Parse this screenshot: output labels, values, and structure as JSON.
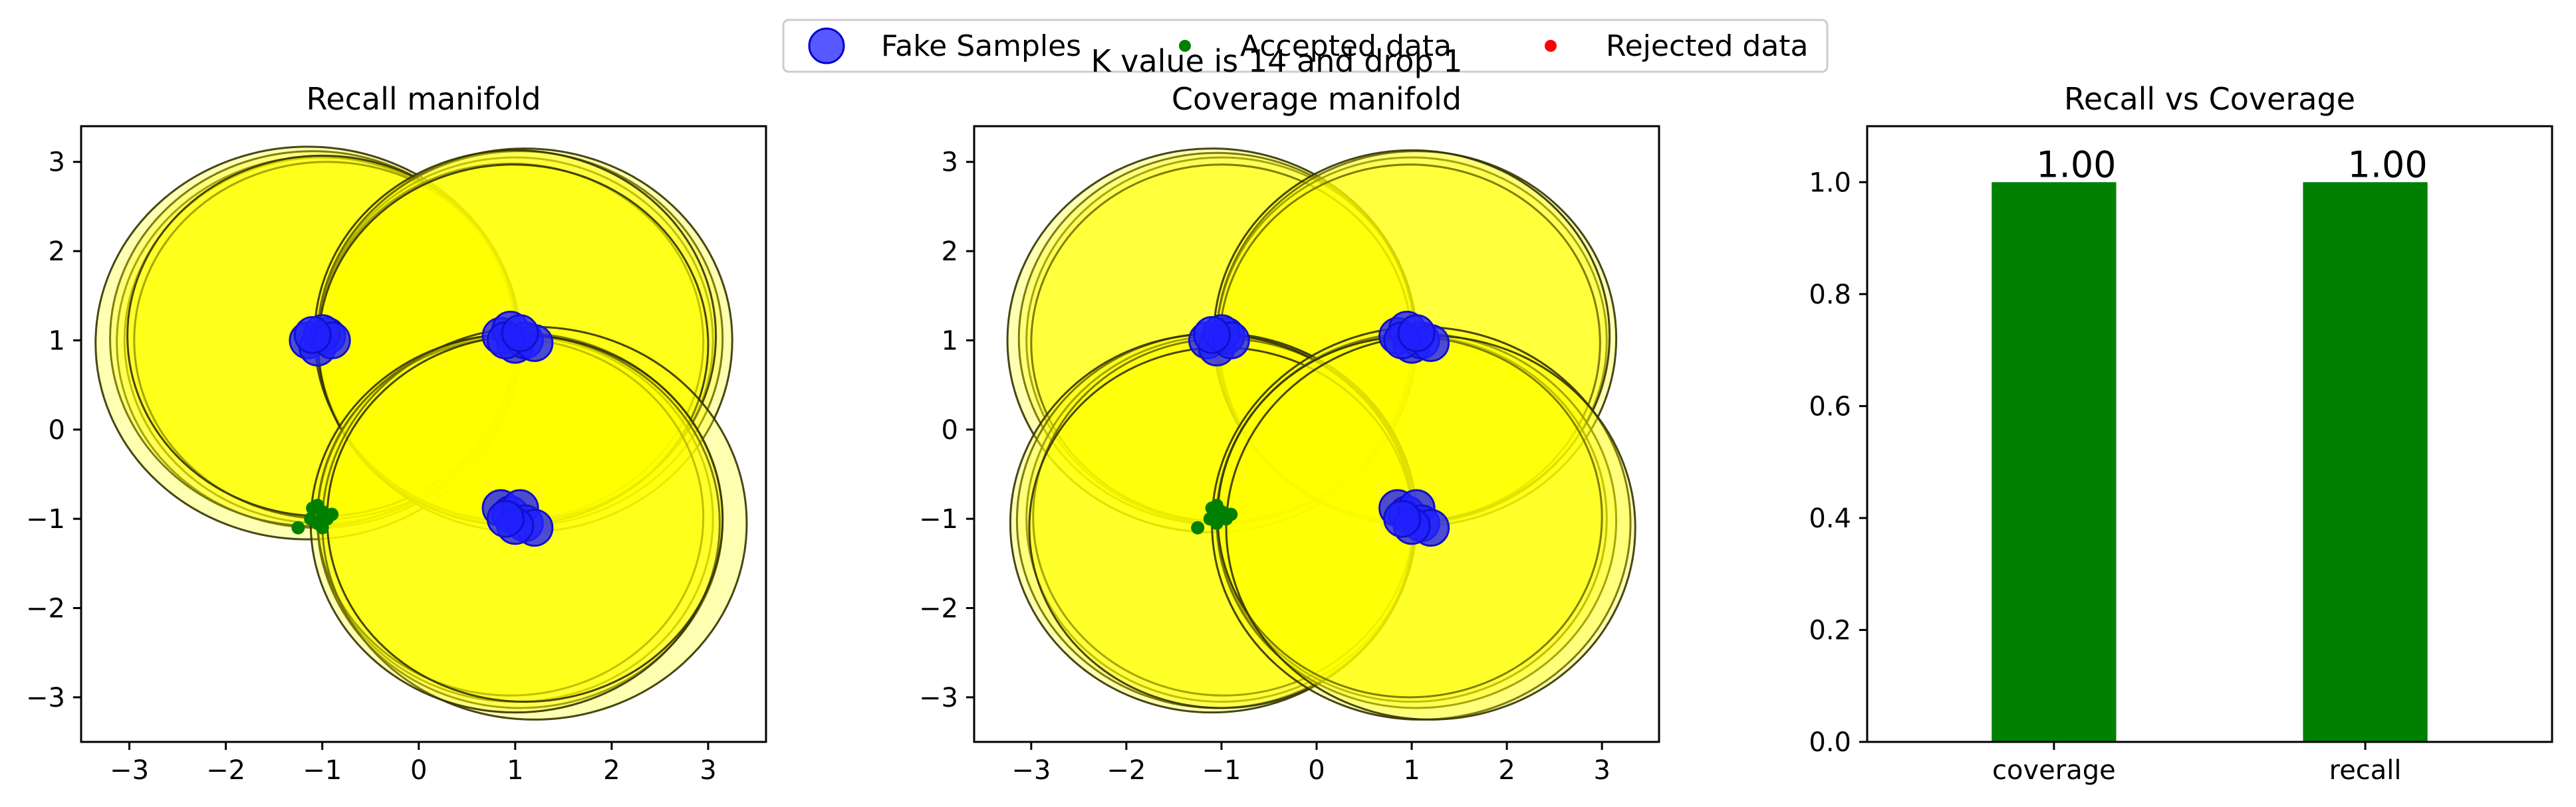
{
  "figure": {
    "suptitle": "K value is 14 and drop 1",
    "legend": {
      "placement": "top-center",
      "entries": [
        {
          "label": "Fake Samples",
          "color": "#2020ff",
          "marker": "large-circle"
        },
        {
          "label": "Accepted data",
          "color": "#008000",
          "marker": "small-dot"
        },
        {
          "label": "Rejected data",
          "color": "#ff0000",
          "marker": "small-dot"
        }
      ]
    }
  },
  "colors": {
    "manifold_fill": "#ffff00",
    "manifold_edge": "#333300",
    "fake": "#2020ff",
    "accepted": "#008000",
    "bar": "#008000"
  },
  "chart_data": [
    {
      "type": "scatter",
      "title": "Recall manifold",
      "xlim": [
        -3.5,
        3.6
      ],
      "ylim": [
        -3.5,
        3.4
      ],
      "xticks": [
        -3,
        -2,
        -1,
        0,
        1,
        2,
        3
      ],
      "yticks": [
        -3,
        -2,
        -1,
        0,
        1,
        2,
        3
      ],
      "manifold_circles": [
        {
          "cx": -1.0,
          "cy": 1.0,
          "r": 2.05
        },
        {
          "cx": -1.05,
          "cy": 0.98,
          "r": 2.08
        },
        {
          "cx": -1.1,
          "cy": 1.02,
          "r": 2.1
        },
        {
          "cx": -0.95,
          "cy": 1.0,
          "r": 2.0
        },
        {
          "cx": -1.15,
          "cy": 0.97,
          "r": 2.2
        },
        {
          "cx": -1.0,
          "cy": 1.05,
          "r": 2.02
        },
        {
          "cx": 1.0,
          "cy": 1.0,
          "r": 2.05
        },
        {
          "cx": 1.05,
          "cy": 1.02,
          "r": 2.1
        },
        {
          "cx": 0.95,
          "cy": 0.98,
          "r": 2.0
        },
        {
          "cx": 1.1,
          "cy": 1.0,
          "r": 2.15
        },
        {
          "cx": 1.0,
          "cy": 1.05,
          "r": 2.08
        },
        {
          "cx": 0.98,
          "cy": 0.95,
          "r": 2.02
        },
        {
          "cx": 1.0,
          "cy": -1.0,
          "r": 2.05
        },
        {
          "cx": 1.05,
          "cy": -1.02,
          "r": 2.1
        },
        {
          "cx": 0.95,
          "cy": -0.98,
          "r": 2.0
        },
        {
          "cx": 1.2,
          "cy": -1.05,
          "r": 2.2
        },
        {
          "cx": 1.0,
          "cy": -1.05,
          "r": 2.12
        },
        {
          "cx": 1.1,
          "cy": -1.0,
          "r": 2.05
        }
      ],
      "fake_samples": [
        {
          "x": -1.15,
          "y": 1.0
        },
        {
          "x": -1.05,
          "y": 0.92
        },
        {
          "x": -0.95,
          "y": 1.05
        },
        {
          "x": -1.0,
          "y": 1.08
        },
        {
          "x": -0.9,
          "y": 1.0
        },
        {
          "x": -1.1,
          "y": 1.06
        },
        {
          "x": 0.85,
          "y": 1.05
        },
        {
          "x": 0.95,
          "y": 1.12
        },
        {
          "x": 1.0,
          "y": 0.95
        },
        {
          "x": 1.1,
          "y": 1.0
        },
        {
          "x": 1.2,
          "y": 0.97
        },
        {
          "x": 0.9,
          "y": 1.0
        },
        {
          "x": 1.05,
          "y": 1.08
        },
        {
          "x": 0.85,
          "y": -0.88
        },
        {
          "x": 0.95,
          "y": -0.95
        },
        {
          "x": 1.05,
          "y": -0.88
        },
        {
          "x": 1.1,
          "y": -1.05
        },
        {
          "x": 1.2,
          "y": -1.1
        },
        {
          "x": 1.0,
          "y": -1.08
        },
        {
          "x": 0.9,
          "y": -1.0
        }
      ],
      "accepted_data": [
        {
          "x": -1.1,
          "y": -0.88
        },
        {
          "x": -1.0,
          "y": -0.92
        },
        {
          "x": -0.95,
          "y": -1.0
        },
        {
          "x": -1.05,
          "y": -1.05
        },
        {
          "x": -1.12,
          "y": -1.0
        },
        {
          "x": -1.0,
          "y": -1.1
        },
        {
          "x": -0.9,
          "y": -0.95
        },
        {
          "x": -1.25,
          "y": -1.1
        },
        {
          "x": -1.05,
          "y": -0.85
        }
      ],
      "rejected_data": []
    },
    {
      "type": "scatter",
      "title": "Coverage manifold",
      "xlim": [
        -3.6,
        3.6
      ],
      "ylim": [
        -3.5,
        3.4
      ],
      "xticks": [
        -3,
        -2,
        -1,
        0,
        1,
        2,
        3
      ],
      "yticks": [
        -3,
        -2,
        -1,
        0,
        1,
        2,
        3
      ],
      "manifold_circles": [
        {
          "cx": -1.0,
          "cy": 1.0,
          "r": 2.05
        },
        {
          "cx": -1.05,
          "cy": 1.02,
          "r": 2.08
        },
        {
          "cx": -1.0,
          "cy": 0.97,
          "r": 2.0
        },
        {
          "cx": -1.1,
          "cy": 1.0,
          "r": 2.15
        },
        {
          "cx": 1.0,
          "cy": 1.0,
          "r": 2.05
        },
        {
          "cx": 1.05,
          "cy": 1.02,
          "r": 2.1
        },
        {
          "cx": 0.98,
          "cy": 0.97,
          "r": 2.0
        },
        {
          "cx": 1.0,
          "cy": 1.05,
          "r": 2.08
        },
        {
          "cx": -1.0,
          "cy": -1.0,
          "r": 2.05
        },
        {
          "cx": -1.05,
          "cy": -1.02,
          "r": 2.1
        },
        {
          "cx": -0.98,
          "cy": -0.98,
          "r": 2.0
        },
        {
          "cx": -1.1,
          "cy": -1.05,
          "r": 2.12
        },
        {
          "cx": -1.0,
          "cy": -1.1,
          "r": 2.02
        },
        {
          "cx": 1.0,
          "cy": -1.0,
          "r": 2.05
        },
        {
          "cx": 1.05,
          "cy": -1.02,
          "r": 2.1
        },
        {
          "cx": 1.1,
          "cy": -1.05,
          "r": 2.2
        },
        {
          "cx": 0.98,
          "cy": -0.98,
          "r": 2.02
        },
        {
          "cx": 1.2,
          "cy": -1.1,
          "r": 2.15
        }
      ],
      "fake_samples": [
        {
          "x": -1.15,
          "y": 1.0
        },
        {
          "x": -1.05,
          "y": 0.92
        },
        {
          "x": -0.95,
          "y": 1.05
        },
        {
          "x": -1.0,
          "y": 1.08
        },
        {
          "x": -0.9,
          "y": 1.0
        },
        {
          "x": -1.1,
          "y": 1.06
        },
        {
          "x": 0.85,
          "y": 1.05
        },
        {
          "x": 0.95,
          "y": 1.12
        },
        {
          "x": 1.0,
          "y": 0.95
        },
        {
          "x": 1.1,
          "y": 1.0
        },
        {
          "x": 1.2,
          "y": 0.97
        },
        {
          "x": 0.9,
          "y": 1.0
        },
        {
          "x": 1.05,
          "y": 1.08
        },
        {
          "x": 0.85,
          "y": -0.88
        },
        {
          "x": 0.95,
          "y": -0.95
        },
        {
          "x": 1.05,
          "y": -0.88
        },
        {
          "x": 1.1,
          "y": -1.05
        },
        {
          "x": 1.2,
          "y": -1.1
        },
        {
          "x": 1.0,
          "y": -1.08
        },
        {
          "x": 0.9,
          "y": -1.0
        }
      ],
      "accepted_data": [
        {
          "x": -1.1,
          "y": -0.88
        },
        {
          "x": -1.0,
          "y": -0.92
        },
        {
          "x": -0.95,
          "y": -1.0
        },
        {
          "x": -1.05,
          "y": -1.05
        },
        {
          "x": -1.12,
          "y": -1.0
        },
        {
          "x": -1.0,
          "y": -0.95
        },
        {
          "x": -0.9,
          "y": -0.95
        },
        {
          "x": -1.25,
          "y": -1.1
        },
        {
          "x": -1.05,
          "y": -0.85
        }
      ],
      "rejected_data": []
    },
    {
      "type": "bar",
      "title": "Recall vs Coverage",
      "categories": [
        "coverage",
        "recall"
      ],
      "values": [
        1.0,
        1.0
      ],
      "value_labels": [
        "1.00",
        "1.00"
      ],
      "ylim": [
        0,
        1.1
      ],
      "yticks": [
        0.0,
        0.2,
        0.4,
        0.6,
        0.8,
        1.0
      ],
      "ytick_labels": [
        "0.0",
        "0.2",
        "0.4",
        "0.6",
        "0.8",
        "1.0"
      ]
    }
  ]
}
